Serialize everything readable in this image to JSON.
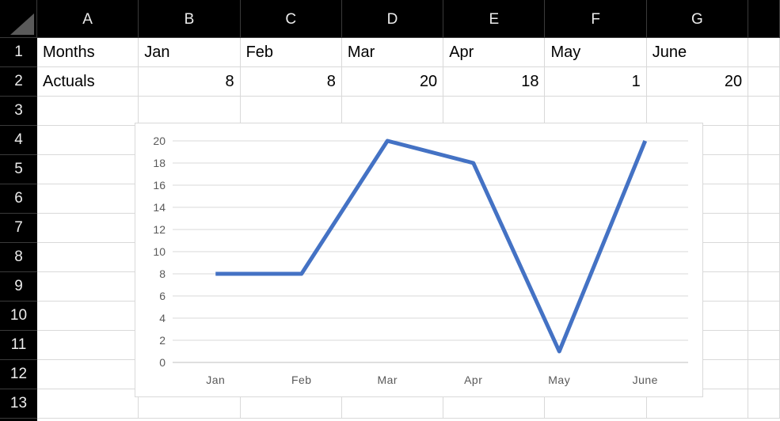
{
  "sheet": {
    "columns": [
      "A",
      "B",
      "C",
      "D",
      "E",
      "F",
      "G"
    ],
    "row_numbers": [
      1,
      2,
      3,
      4,
      5,
      6,
      7,
      8,
      9,
      10,
      11,
      12,
      13
    ],
    "cells": {
      "A1": "Months",
      "B1": "Jan",
      "C1": "Feb",
      "D1": "Mar",
      "E1": "Apr",
      "F1": "May",
      "G1": "June",
      "A2": "Actuals",
      "B2": "8",
      "C2": "8",
      "D2": "20",
      "E2": "18",
      "F2": "1",
      "G2": "20"
    }
  },
  "chart_data": {
    "type": "line",
    "categories": [
      "Jan",
      "Feb",
      "Mar",
      "Apr",
      "May",
      "June"
    ],
    "series": [
      {
        "name": "Actuals",
        "values": [
          8,
          8,
          20,
          18,
          1,
          20
        ],
        "color": "#4472C4"
      }
    ],
    "title": "",
    "xlabel": "",
    "ylabel": "",
    "ylim": [
      0,
      20
    ],
    "ytick_step": 2,
    "yticks": [
      0,
      2,
      4,
      6,
      8,
      10,
      12,
      14,
      16,
      18,
      20
    ],
    "grid": true,
    "legend_position": "none"
  },
  "colors": {
    "line_accent": "#4472C4",
    "chart_gridline": "#D9D9D9",
    "chart_axis": "#BFBFBF",
    "chart_tick_text": "#595959",
    "chart_border": "#D9D9D9",
    "header_bg": "#000000",
    "header_text": "#ECECEC",
    "header_divider": "#3A3A3A",
    "cell_gridline": "#D9D9D9",
    "select_all_triangle": "#5A5A5A"
  }
}
